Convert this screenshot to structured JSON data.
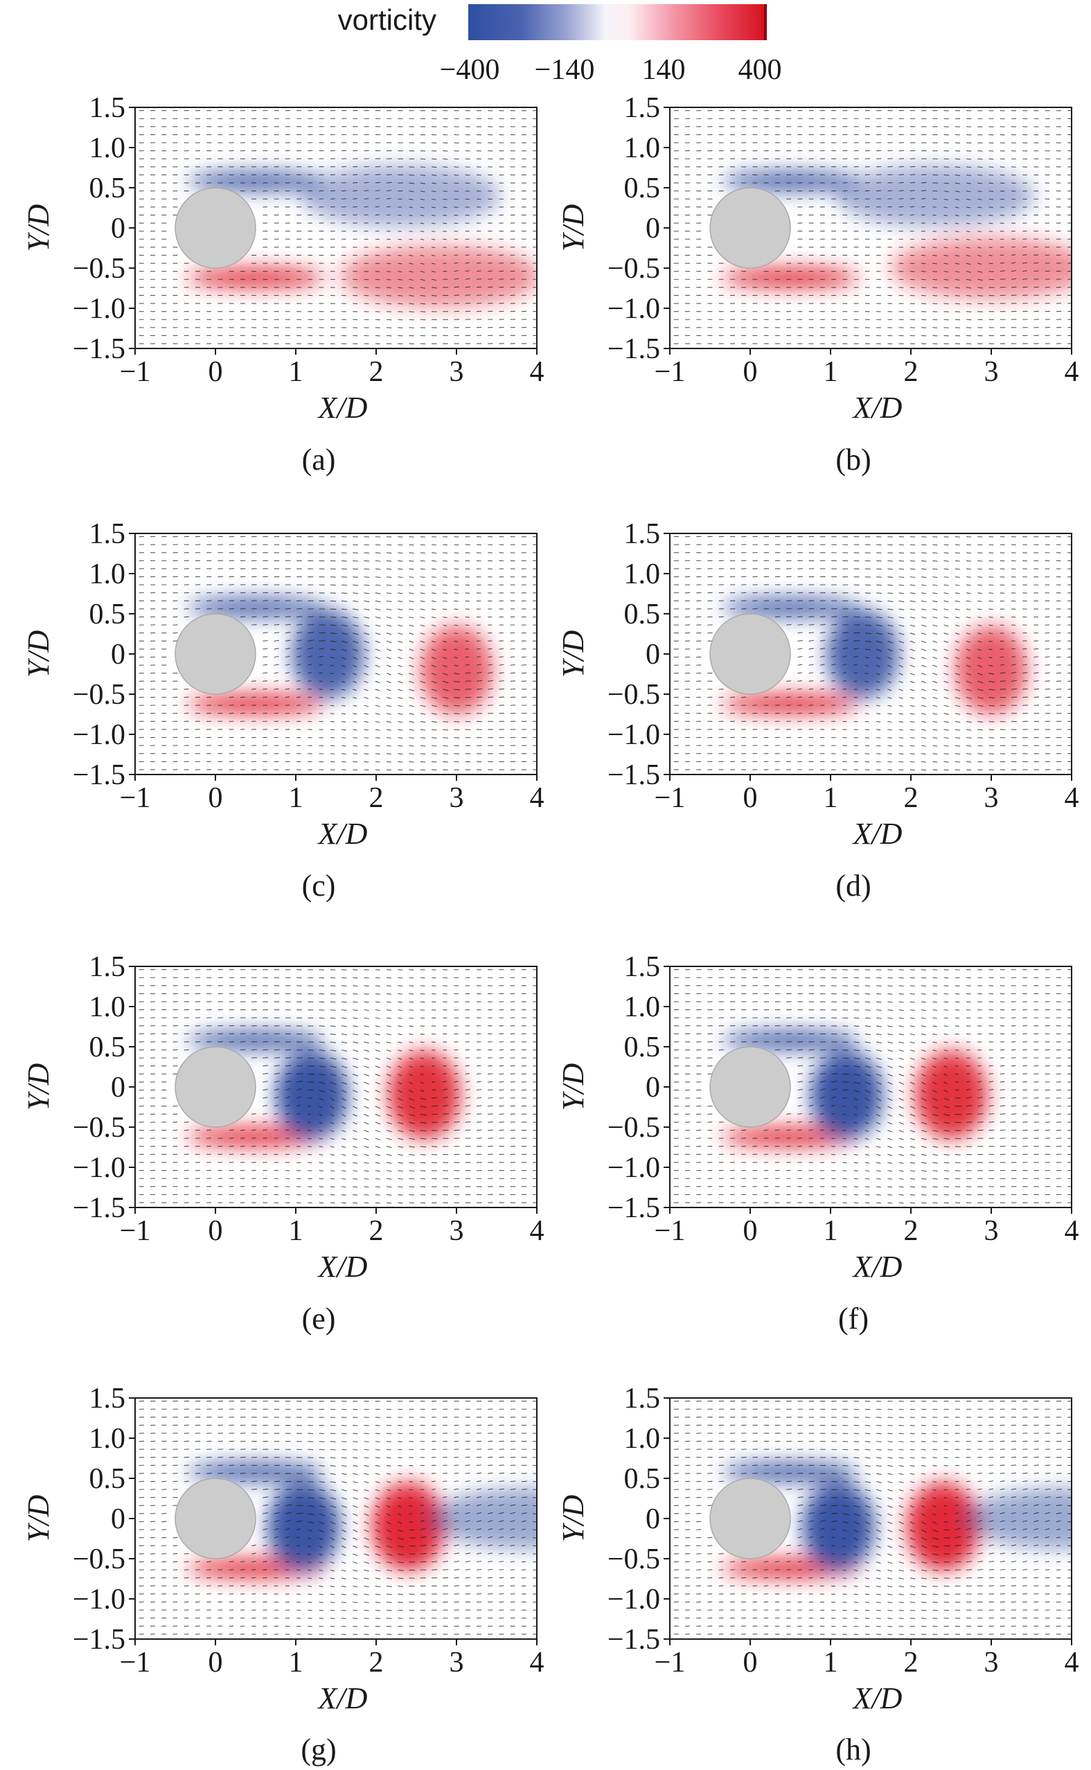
{
  "colorbar": {
    "title": "vorticity",
    "ticks": [
      "−400",
      "−140",
      "140",
      "400"
    ],
    "tick_values": [
      -400,
      -140,
      140,
      400
    ],
    "range": [
      -400,
      400
    ],
    "colors": {
      "negative": "#3a55a4",
      "neutral": "#ffffff",
      "positive": "#e0202f"
    }
  },
  "cylinder_color": "#cccccc",
  "chart_data": [
    {
      "type": "heatmap",
      "label": "(a)",
      "xlabel": "X/D",
      "ylabel": "Y/D",
      "xlim": [
        -1,
        4
      ],
      "ylim": [
        -1.5,
        1.5
      ],
      "xticks": [
        "−1",
        "0",
        "1",
        "2",
        "3",
        "4"
      ],
      "yticks": [
        "1.5",
        "1.0",
        "0.5",
        "0",
        "−0.5",
        "−1.0",
        "−1.5"
      ],
      "vortices": [
        {
          "sign": "negative",
          "x": 2.3,
          "y": 0.4,
          "strength": 0.45
        },
        {
          "sign": "positive",
          "x": 2.8,
          "y": -0.6,
          "strength": 0.5
        }
      ]
    },
    {
      "type": "heatmap",
      "label": "(b)",
      "xlabel": "X/D",
      "ylabel": "Y/D",
      "xlim": [
        -1,
        4
      ],
      "ylim": [
        -1.5,
        1.5
      ],
      "xticks": [
        "−1",
        "0",
        "1",
        "2",
        "3",
        "4"
      ],
      "yticks": [
        "1.5",
        "1.0",
        "0.5",
        "0",
        "−0.5",
        "−1.0",
        "−1.5"
      ],
      "vortices": [
        {
          "sign": "negative",
          "x": 2.3,
          "y": 0.4,
          "strength": 0.45
        },
        {
          "sign": "positive",
          "x": 3.0,
          "y": -0.5,
          "strength": 0.5
        }
      ]
    },
    {
      "type": "heatmap",
      "label": "(c)",
      "xlabel": "X/D",
      "ylabel": "Y/D",
      "xlim": [
        -1,
        4
      ],
      "ylim": [
        -1.5,
        1.5
      ],
      "xticks": [
        "−1",
        "0",
        "1",
        "2",
        "3",
        "4"
      ],
      "yticks": [
        "1.5",
        "1.0",
        "0.5",
        "0",
        "−0.5",
        "−1.0",
        "−1.5"
      ],
      "vortices": [
        {
          "sign": "negative",
          "x": 1.4,
          "y": 0.0,
          "strength": 0.9
        },
        {
          "sign": "positive",
          "x": 3.0,
          "y": -0.2,
          "strength": 0.7
        }
      ]
    },
    {
      "type": "heatmap",
      "label": "(d)",
      "xlabel": "X/D",
      "ylabel": "Y/D",
      "xlim": [
        -1,
        4
      ],
      "ylim": [
        -1.5,
        1.5
      ],
      "xticks": [
        "−1",
        "0",
        "1",
        "2",
        "3",
        "4"
      ],
      "yticks": [
        "1.5",
        "1.0",
        "0.5",
        "0",
        "−0.5",
        "−1.0",
        "−1.5"
      ],
      "vortices": [
        {
          "sign": "negative",
          "x": 1.4,
          "y": 0.0,
          "strength": 0.9
        },
        {
          "sign": "positive",
          "x": 3.0,
          "y": -0.2,
          "strength": 0.7
        }
      ]
    },
    {
      "type": "heatmap",
      "label": "(e)",
      "xlabel": "X/D",
      "ylabel": "Y/D",
      "xlim": [
        -1,
        4
      ],
      "ylim": [
        -1.5,
        1.5
      ],
      "xticks": [
        "−1",
        "0",
        "1",
        "2",
        "3",
        "4"
      ],
      "yticks": [
        "1.5",
        "1.0",
        "0.5",
        "0",
        "−0.5",
        "−1.0",
        "−1.5"
      ],
      "vortices": [
        {
          "sign": "negative",
          "x": 1.2,
          "y": -0.1,
          "strength": 1.0
        },
        {
          "sign": "positive",
          "x": 2.6,
          "y": -0.1,
          "strength": 0.9
        }
      ]
    },
    {
      "type": "heatmap",
      "label": "(f)",
      "xlabel": "X/D",
      "ylabel": "Y/D",
      "xlim": [
        -1,
        4
      ],
      "ylim": [
        -1.5,
        1.5
      ],
      "xticks": [
        "−1",
        "0",
        "1",
        "2",
        "3",
        "4"
      ],
      "yticks": [
        "1.5",
        "1.0",
        "0.5",
        "0",
        "−0.5",
        "−1.0",
        "−1.5"
      ],
      "vortices": [
        {
          "sign": "negative",
          "x": 1.2,
          "y": -0.1,
          "strength": 1.0
        },
        {
          "sign": "positive",
          "x": 2.5,
          "y": -0.1,
          "strength": 0.9
        }
      ]
    },
    {
      "type": "heatmap",
      "label": "(g)",
      "xlabel": "X/D",
      "ylabel": "Y/D",
      "xlim": [
        -1,
        4
      ],
      "ylim": [
        -1.5,
        1.5
      ],
      "xticks": [
        "−1",
        "0",
        "1",
        "2",
        "3",
        "4"
      ],
      "yticks": [
        "1.5",
        "1.0",
        "0.5",
        "0",
        "−0.5",
        "−1.0",
        "−1.5"
      ],
      "vortices": [
        {
          "sign": "negative",
          "x": 1.1,
          "y": -0.1,
          "strength": 1.0
        },
        {
          "sign": "positive",
          "x": 2.4,
          "y": -0.1,
          "strength": 0.95
        },
        {
          "sign": "negative",
          "x": 3.9,
          "y": 0.0,
          "strength": 0.5
        }
      ]
    },
    {
      "type": "heatmap",
      "label": "(h)",
      "xlabel": "X/D",
      "ylabel": "Y/D",
      "xlim": [
        -1,
        4
      ],
      "ylim": [
        -1.5,
        1.5
      ],
      "xticks": [
        "−1",
        "0",
        "1",
        "2",
        "3",
        "4"
      ],
      "yticks": [
        "1.5",
        "1.0",
        "0.5",
        "0",
        "−0.5",
        "−1.0",
        "−1.5"
      ],
      "vortices": [
        {
          "sign": "negative",
          "x": 1.1,
          "y": -0.1,
          "strength": 1.0
        },
        {
          "sign": "positive",
          "x": 2.4,
          "y": -0.1,
          "strength": 0.95
        },
        {
          "sign": "negative",
          "x": 3.9,
          "y": 0.0,
          "strength": 0.5
        }
      ]
    }
  ]
}
